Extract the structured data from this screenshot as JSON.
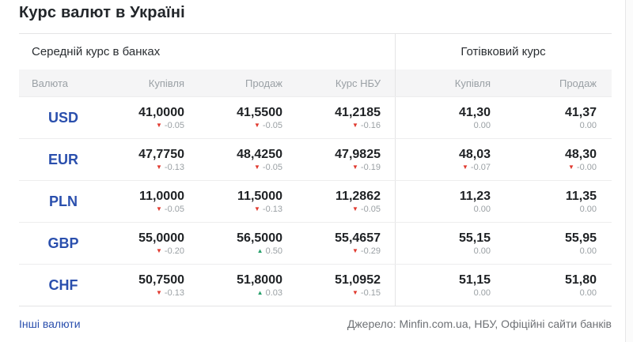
{
  "page": {
    "title": "Курс валют в Україні"
  },
  "table": {
    "sections": {
      "banks": "Середній курс в банках",
      "cash": "Готівковий курс"
    },
    "columns": {
      "currency": "Валюта",
      "buy": "Купівля",
      "sell": "Продаж",
      "nbu": "Курс НБУ",
      "cash_buy": "Купівля",
      "cash_sell": "Продаж"
    },
    "rows": [
      {
        "code": "USD",
        "cells": [
          {
            "value": "41,0000",
            "delta": "-0.05",
            "dir": "down"
          },
          {
            "value": "41,5500",
            "delta": "-0.05",
            "dir": "down"
          },
          {
            "value": "41,2185",
            "delta": "-0.16",
            "dir": "down"
          },
          {
            "value": "41,30",
            "delta": "0.00",
            "dir": "flat"
          },
          {
            "value": "41,37",
            "delta": "0.00",
            "dir": "flat"
          }
        ]
      },
      {
        "code": "EUR",
        "cells": [
          {
            "value": "47,7750",
            "delta": "-0.13",
            "dir": "down"
          },
          {
            "value": "48,4250",
            "delta": "-0.05",
            "dir": "down"
          },
          {
            "value": "47,9825",
            "delta": "-0.19",
            "dir": "down"
          },
          {
            "value": "48,03",
            "delta": "-0.07",
            "dir": "down"
          },
          {
            "value": "48,30",
            "delta": "-0.00",
            "dir": "down"
          }
        ]
      },
      {
        "code": "PLN",
        "cells": [
          {
            "value": "11,0000",
            "delta": "-0.05",
            "dir": "down"
          },
          {
            "value": "11,5000",
            "delta": "-0.13",
            "dir": "down"
          },
          {
            "value": "11,2862",
            "delta": "-0.05",
            "dir": "down"
          },
          {
            "value": "11,23",
            "delta": "0.00",
            "dir": "flat"
          },
          {
            "value": "11,35",
            "delta": "0.00",
            "dir": "flat"
          }
        ]
      },
      {
        "code": "GBP",
        "cells": [
          {
            "value": "55,0000",
            "delta": "-0.20",
            "dir": "down"
          },
          {
            "value": "56,5000",
            "delta": "0.50",
            "dir": "up"
          },
          {
            "value": "55,4657",
            "delta": "-0.29",
            "dir": "down"
          },
          {
            "value": "55,15",
            "delta": "0.00",
            "dir": "flat"
          },
          {
            "value": "55,95",
            "delta": "0.00",
            "dir": "flat"
          }
        ]
      },
      {
        "code": "CHF",
        "cells": [
          {
            "value": "50,7500",
            "delta": "-0.13",
            "dir": "down"
          },
          {
            "value": "51,8000",
            "delta": "0.03",
            "dir": "up"
          },
          {
            "value": "51,0952",
            "delta": "-0.15",
            "dir": "down"
          },
          {
            "value": "51,15",
            "delta": "0.00",
            "dir": "flat"
          },
          {
            "value": "51,80",
            "delta": "0.00",
            "dir": "flat"
          }
        ]
      }
    ]
  },
  "footer": {
    "other_link": "Інші валюти",
    "source": "Джерело: Minfin.com.ua, НБУ, Офіційні сайти банків"
  },
  "icons": {
    "arrow_down": "▼",
    "arrow_up": "▲"
  },
  "colors": {
    "accent_blue": "#2a4fad",
    "down_red": "#e03a2f",
    "up_green": "#27a06b",
    "header_bg": "#f5f5f6"
  }
}
